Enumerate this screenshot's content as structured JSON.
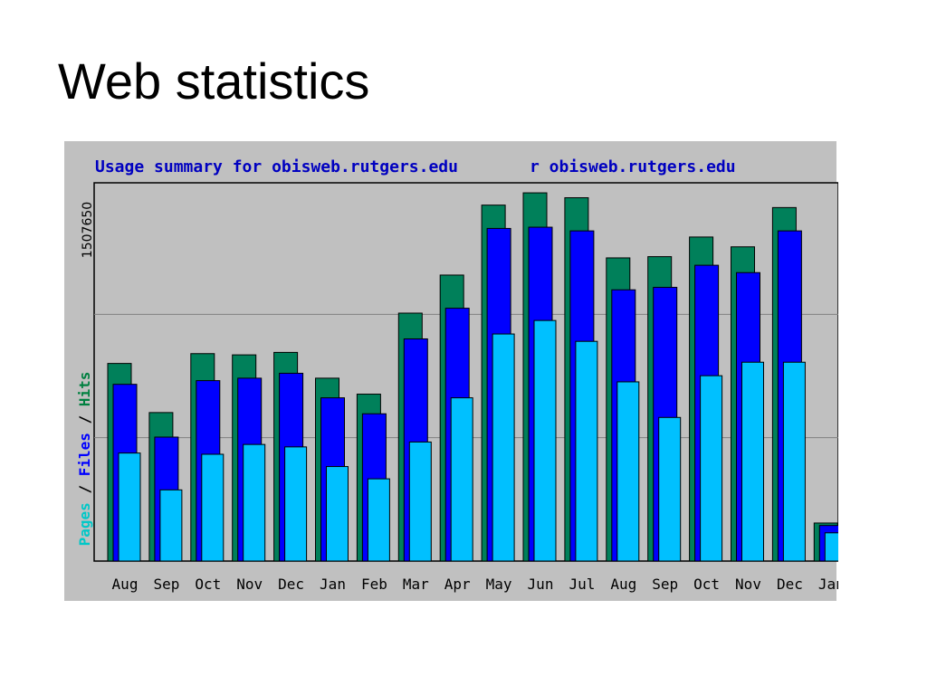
{
  "slide": {
    "title": "Web statistics"
  },
  "chart_data": {
    "type": "bar",
    "title_left": "Usage summary for obisweb.rutgers.edu",
    "title_right": "r obisweb.rutgers.edu",
    "ylabel_parts": [
      {
        "text": "Pages",
        "color": "#00c8c8"
      },
      {
        "text": " / ",
        "color": "#000000"
      },
      {
        "text": "Files",
        "color": "#0000ff"
      },
      {
        "text": " / ",
        "color": "#000000"
      },
      {
        "text": "Hits",
        "color": "#008040"
      }
    ],
    "ymax_label": "1507650",
    "ylim": [
      0,
      1507650
    ],
    "grid": true,
    "categories": [
      "Aug",
      "Sep",
      "Oct",
      "Nov",
      "Dec",
      "Jan",
      "Feb",
      "Mar",
      "Apr",
      "May",
      "Jun",
      "Jul",
      "Aug",
      "Sep",
      "Oct",
      "Nov",
      "Dec",
      "Jan"
    ],
    "series": [
      {
        "name": "Hits",
        "color": "#00805a",
        "values": [
          805000,
          605000,
          845000,
          840000,
          850000,
          745000,
          680000,
          1010000,
          1165000,
          1450000,
          1500000,
          1480000,
          1235000,
          1240000,
          1320000,
          1280000,
          1440000,
          155000
        ]
      },
      {
        "name": "Files",
        "color": "#0000ff",
        "values": [
          720000,
          505000,
          735000,
          745000,
          765000,
          665000,
          600000,
          905000,
          1030000,
          1355000,
          1360000,
          1345000,
          1105000,
          1115000,
          1205000,
          1175000,
          1345000,
          145000
        ]
      },
      {
        "name": "Pages",
        "color": "#00c0ff",
        "values": [
          440000,
          290000,
          435000,
          475000,
          465000,
          385000,
          335000,
          485000,
          665000,
          925000,
          980000,
          895000,
          730000,
          585000,
          755000,
          810000,
          810000,
          115000
        ]
      }
    ],
    "colors": {
      "panel_bg": "#c0c0c0",
      "plot_bg": "#c0c0c0",
      "title_blue": "#0000c0",
      "grid": "#808080"
    }
  }
}
